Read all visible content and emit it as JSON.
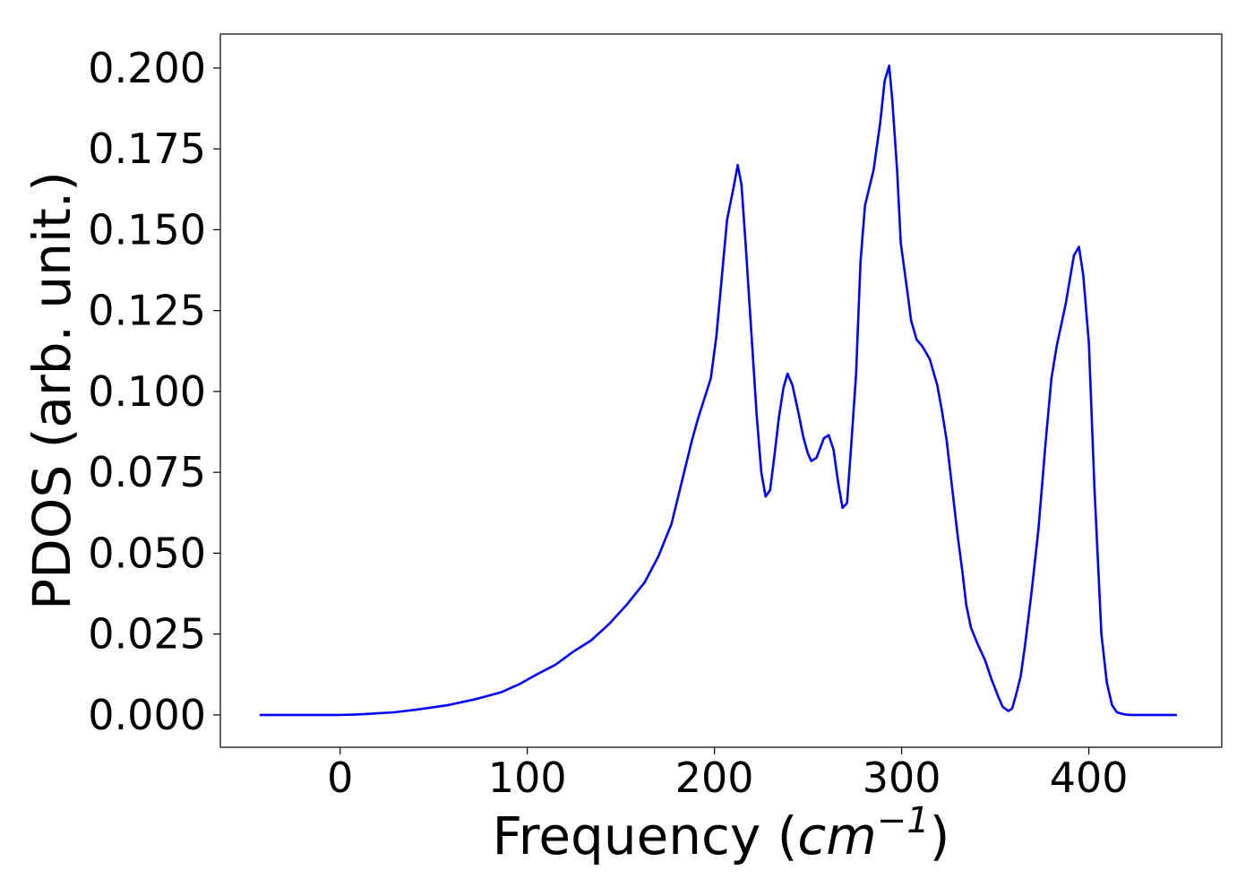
{
  "chart_data": {
    "type": "line",
    "ylabel": "PDOS (arb. unit.)",
    "xlabel": {
      "text": "Frequency (",
      "unit": "cm",
      "exponent": "−1",
      "close": ")"
    },
    "xlim": [
      -64,
      471
    ],
    "ylim": [
      -0.01,
      0.2105
    ],
    "xticks": [
      0,
      100,
      200,
      300,
      400
    ],
    "yticks": [
      {
        "value": 0,
        "label": "0.000"
      },
      {
        "value": 0.025,
        "label": "0.025"
      },
      {
        "value": 0.05,
        "label": "0.050"
      },
      {
        "value": 0.075,
        "label": "0.075"
      },
      {
        "value": 0.1,
        "label": "0.100"
      },
      {
        "value": 0.125,
        "label": "0.125"
      },
      {
        "value": 0.15,
        "label": "0.150"
      },
      {
        "value": 0.175,
        "label": "0.175"
      },
      {
        "value": 0.2,
        "label": "0.200"
      }
    ],
    "grid": false,
    "series": [
      {
        "color": "#0000ff",
        "x": [
          -43,
          0,
          7,
          14.4,
          28.7,
          43,
          57.4,
          71.8,
          86,
          95.7,
          105,
          115,
          124.4,
          134,
          143.5,
          153,
          162.7,
          170,
          177,
          188,
          191.4,
          198,
          201,
          206.7,
          210.5,
          212.4,
          214.4,
          216.7,
          222.5,
          225,
          227.3,
          229.7,
          232,
          234.4,
          236.8,
          239,
          241.6,
          245,
          247.4,
          249.8,
          251.7,
          254.5,
          258.4,
          261,
          263.6,
          266,
          268.4,
          270.8,
          273,
          275.6,
          278,
          280.4,
          285,
          288.5,
          290.9,
          293.3,
          295,
          297.6,
          299.5,
          303,
          305,
          308,
          311,
          315,
          319,
          321.5,
          324,
          327,
          330,
          332.5,
          334.5,
          337,
          340.5,
          344.5,
          348,
          351.7,
          354,
          357,
          359,
          361,
          363.6,
          366,
          369.4,
          373,
          377,
          380,
          382.8,
          387.6,
          392,
          394.7,
          397,
          400,
          403,
          406.7,
          409.6,
          412.4,
          415,
          418.7,
          422,
          447
        ],
        "values": [
          0,
          0,
          0.0001,
          0.0003,
          0.0008,
          0.0018,
          0.003,
          0.0048,
          0.007,
          0.0095,
          0.0125,
          0.0155,
          0.0195,
          0.023,
          0.028,
          0.034,
          0.041,
          0.049,
          0.059,
          0.085,
          0.092,
          0.104,
          0.117,
          0.153,
          0.164,
          0.17,
          0.164,
          0.145,
          0.093,
          0.075,
          0.0675,
          0.0695,
          0.08,
          0.092,
          0.101,
          0.1055,
          0.102,
          0.093,
          0.086,
          0.081,
          0.0785,
          0.0795,
          0.0855,
          0.0865,
          0.082,
          0.072,
          0.064,
          0.0655,
          0.083,
          0.105,
          0.14,
          0.1575,
          0.1685,
          0.183,
          0.196,
          0.2007,
          0.19,
          0.168,
          0.146,
          0.131,
          0.122,
          0.116,
          0.114,
          0.11,
          0.102,
          0.094,
          0.085,
          0.07,
          0.055,
          0.044,
          0.034,
          0.027,
          0.022,
          0.017,
          0.011,
          0.0055,
          0.0025,
          0.0012,
          0.002,
          0.006,
          0.012,
          0.022,
          0.038,
          0.057,
          0.085,
          0.104,
          0.114,
          0.127,
          0.142,
          0.1447,
          0.136,
          0.115,
          0.07,
          0.025,
          0.01,
          0.003,
          0.0008,
          0.0002,
          0,
          0
        ]
      }
    ]
  }
}
